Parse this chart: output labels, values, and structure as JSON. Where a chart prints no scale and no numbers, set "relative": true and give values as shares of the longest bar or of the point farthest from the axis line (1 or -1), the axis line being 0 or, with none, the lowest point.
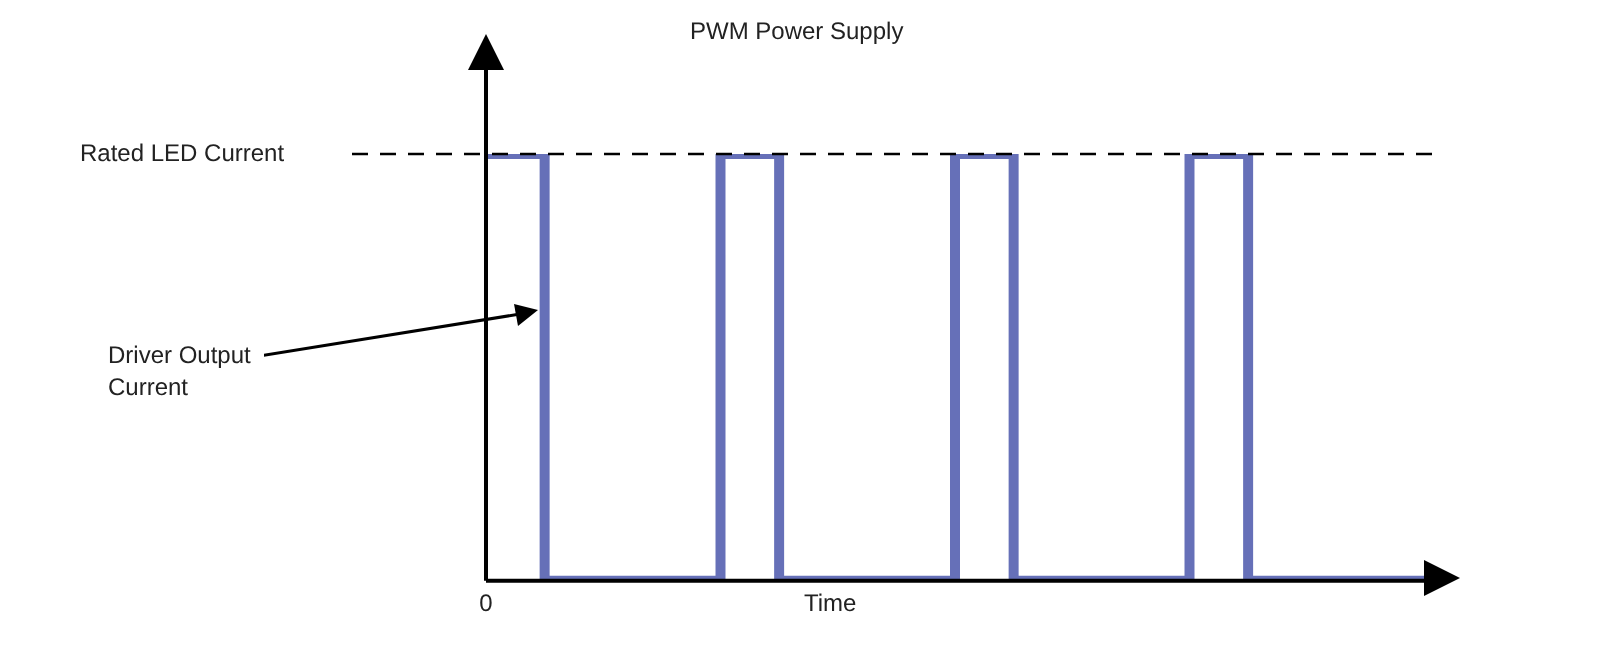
{
  "chart_data": {
    "type": "step",
    "title": "PWM Power Supply",
    "xlabel": "Time",
    "categories": [
      null,
      null,
      null,
      null,
      null,
      null,
      null,
      null,
      null,
      null,
      null,
      null,
      null,
      null,
      null,
      null,
      null
    ],
    "values": [
      1,
      0,
      0,
      0,
      1,
      0,
      0,
      0,
      1,
      0,
      0,
      0,
      1,
      0,
      0,
      0,
      0
    ],
    "color": "#6670b8",
    "relative": true,
    "grid": false,
    "legend": false,
    "ref_lines": [
      {
        "axis": "y",
        "value": 1,
        "label": "Rated LED Current",
        "line_style": "dashed",
        "color": "#000000"
      }
    ],
    "annotations": [
      "Driver Output Current",
      "0"
    ]
  }
}
